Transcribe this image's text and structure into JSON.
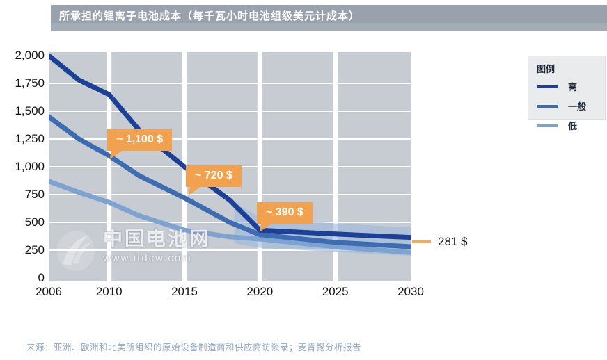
{
  "title": "所承担的锂离子电池成本（每千瓦小时电池组级美元计成本）",
  "legend": {
    "title": "图例"
  },
  "watermark": {
    "name": "中国电池网",
    "url": "www.itdcw.com"
  },
  "source": "来源：亚洲、欧洲和北美所组织的原始设备制造商和供应商访谈录；麦肯锡分析报告",
  "colors": {
    "title_bar": "#99a1ad",
    "plot_background": "#c7cbd2",
    "gridline": "#ffffff",
    "callout_orange": "#f2a24e",
    "end_dash_orange": "#efac64",
    "band_fill": "#9db9dc",
    "high_line": "#1c4097",
    "medium_line": "#3e6cb3",
    "low_line": "#7fa3d1"
  },
  "chart_data": {
    "type": "line",
    "title": "所承担的锂离子电池成本（每千瓦小时电池组级美元计成本）",
    "xlabel": "",
    "ylabel": "",
    "x_range": [
      2006,
      2030
    ],
    "y_range": [
      0,
      2000
    ],
    "x_ticks": [
      2006,
      2010,
      2015,
      2020,
      2025,
      2030
    ],
    "y_ticks": [
      0,
      250,
      500,
      750,
      1000,
      1250,
      1500,
      1750,
      2000
    ],
    "grid": true,
    "legend_position": "right",
    "series": [
      {
        "name": "高",
        "color": "#1c4097",
        "x": [
          2006,
          2008,
          2010,
          2012,
          2015,
          2018,
          2020,
          2025,
          2030
        ],
        "values": [
          2000,
          1780,
          1650,
          1330,
          1000,
          700,
          430,
          395,
          365
        ]
      },
      {
        "name": "一般",
        "color": "#3e6cb3",
        "x": [
          2006,
          2008,
          2010,
          2012,
          2015,
          2018,
          2020,
          2025,
          2030
        ],
        "values": [
          1450,
          1250,
          1100,
          920,
          720,
          500,
          390,
          320,
          281
        ]
      },
      {
        "name": "低",
        "color": "#7fa3d1",
        "x": [
          2006,
          2008,
          2010,
          2012,
          2015,
          2018,
          2020,
          2025,
          2030
        ],
        "values": [
          870,
          770,
          680,
          560,
          430,
          370,
          350,
          280,
          230
        ]
      }
    ],
    "uncertainty_band": {
      "x": [
        2018.3,
        2020,
        2025,
        2030
      ],
      "upper": [
        680,
        545,
        490,
        455
      ],
      "lower": [
        310,
        270,
        235,
        200
      ]
    },
    "annotations": [
      {
        "label": "~ 1,100 $",
        "x": 2010,
        "y": 1100,
        "series": "一般"
      },
      {
        "label": "~ 720 $",
        "x": 2015,
        "y": 720,
        "series": "一般"
      },
      {
        "label": "~ 390 $",
        "x": 2020,
        "y": 390,
        "series": "一般"
      },
      {
        "label": "281 $",
        "x": 2030,
        "y": 281,
        "series": "一般"
      }
    ]
  }
}
